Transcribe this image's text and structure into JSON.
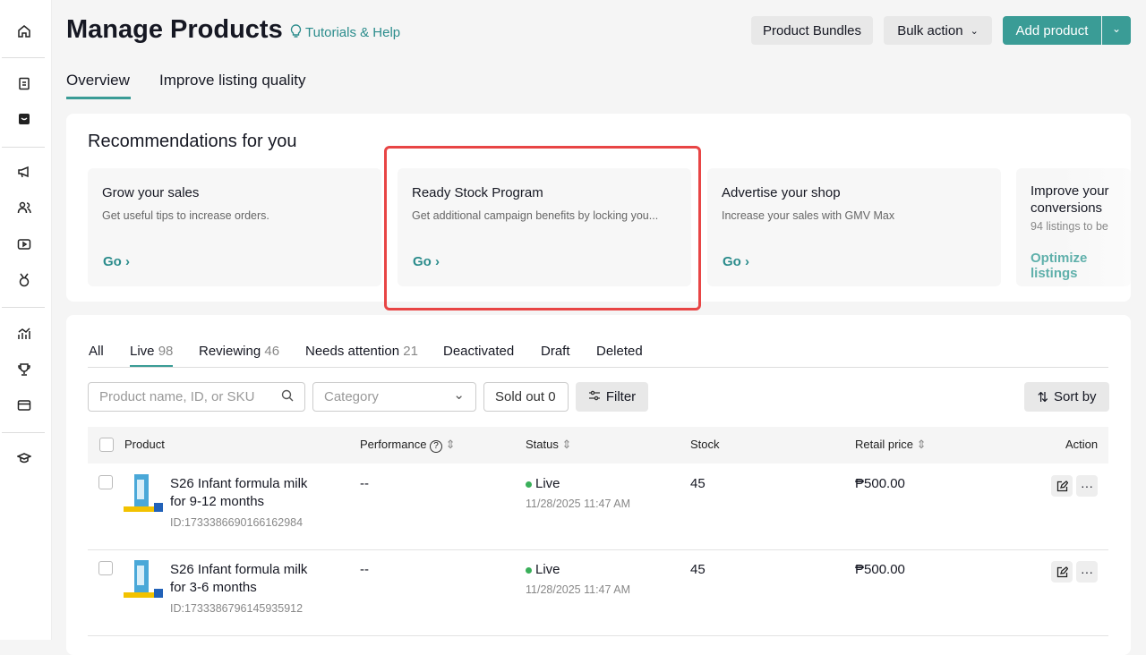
{
  "header": {
    "title": "Manage Products",
    "help": "Tutorials & Help",
    "bundles": "Product Bundles",
    "bulk": "Bulk action",
    "add": "Add product"
  },
  "tabs": [
    "Overview",
    "Improve listing quality"
  ],
  "recommendations": {
    "title": "Recommendations for you",
    "cards": [
      {
        "title": "Grow your sales",
        "desc": "Get useful tips to increase orders.",
        "cta": "Go"
      },
      {
        "title": "Ready Stock Program",
        "desc": "Get additional campaign benefits by locking you...",
        "cta": "Go"
      },
      {
        "title": "Advertise your shop",
        "desc": "Increase your sales with GMV Max",
        "cta": "Go"
      },
      {
        "title": "Improve your conversions",
        "desc": "94 listings to be",
        "cta": "Optimize listings"
      }
    ]
  },
  "status_tabs": [
    {
      "label": "All",
      "count": ""
    },
    {
      "label": "Live",
      "count": "98"
    },
    {
      "label": "Reviewing",
      "count": "46"
    },
    {
      "label": "Needs attention",
      "count": "21"
    },
    {
      "label": "Deactivated",
      "count": ""
    },
    {
      "label": "Draft",
      "count": ""
    },
    {
      "label": "Deleted",
      "count": ""
    }
  ],
  "filters": {
    "search_placeholder": "Product name, ID, or SKU",
    "category_placeholder": "Category",
    "sold_out": "Sold out 0",
    "filter": "Filter",
    "sort": "Sort by"
  },
  "table": {
    "headers": [
      "Product",
      "Performance",
      "Status",
      "Stock",
      "Retail price",
      "Action"
    ],
    "rows": [
      {
        "name1": "S26 Infant formula milk",
        "name2": "for 9-12 months",
        "id": "ID:1733386690166162984",
        "performance": "--",
        "status": "Live",
        "date": "11/28/2025 11:47 AM",
        "stock": "45",
        "price": "₱500.00"
      },
      {
        "name1": "S26 Infant formula milk",
        "name2": "for 3-6 months",
        "id": "ID:1733386796145935912",
        "performance": "--",
        "status": "Live",
        "date": "11/28/2025 11:47 AM",
        "stock": "45",
        "price": "₱500.00"
      }
    ]
  },
  "colors": {
    "accent": "#3a9c96",
    "highlight": "#e84545",
    "live": "#3aaf5a"
  }
}
